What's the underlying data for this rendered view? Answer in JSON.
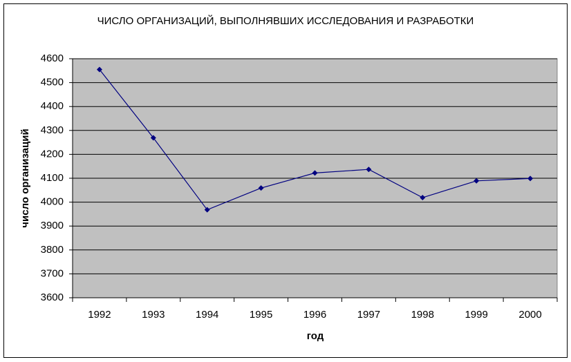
{
  "chart_data": {
    "type": "line",
    "title": "ЧИСЛО ОРГАНИЗАЦИЙ, ВЫПОЛНЯВШИХ ИССЛЕДОВАНИЯ И РАЗРАБОТКИ",
    "xlabel": "год",
    "ylabel": "число организаций",
    "categories": [
      "1992",
      "1993",
      "1994",
      "1995",
      "1996",
      "1997",
      "1998",
      "1999",
      "2000"
    ],
    "series": [
      {
        "name": "число организаций",
        "color": "#000080",
        "values": [
          4555,
          4269,
          3968,
          4059,
          4122,
          4137,
          4019,
          4089,
          4099
        ]
      }
    ],
    "ylim": [
      3600,
      4600
    ],
    "yticks": [
      3600,
      3700,
      3800,
      3900,
      4000,
      4100,
      4200,
      4300,
      4400,
      4500,
      4600
    ],
    "grid": true,
    "plot_background": "#c0c0c0",
    "legend": false
  }
}
